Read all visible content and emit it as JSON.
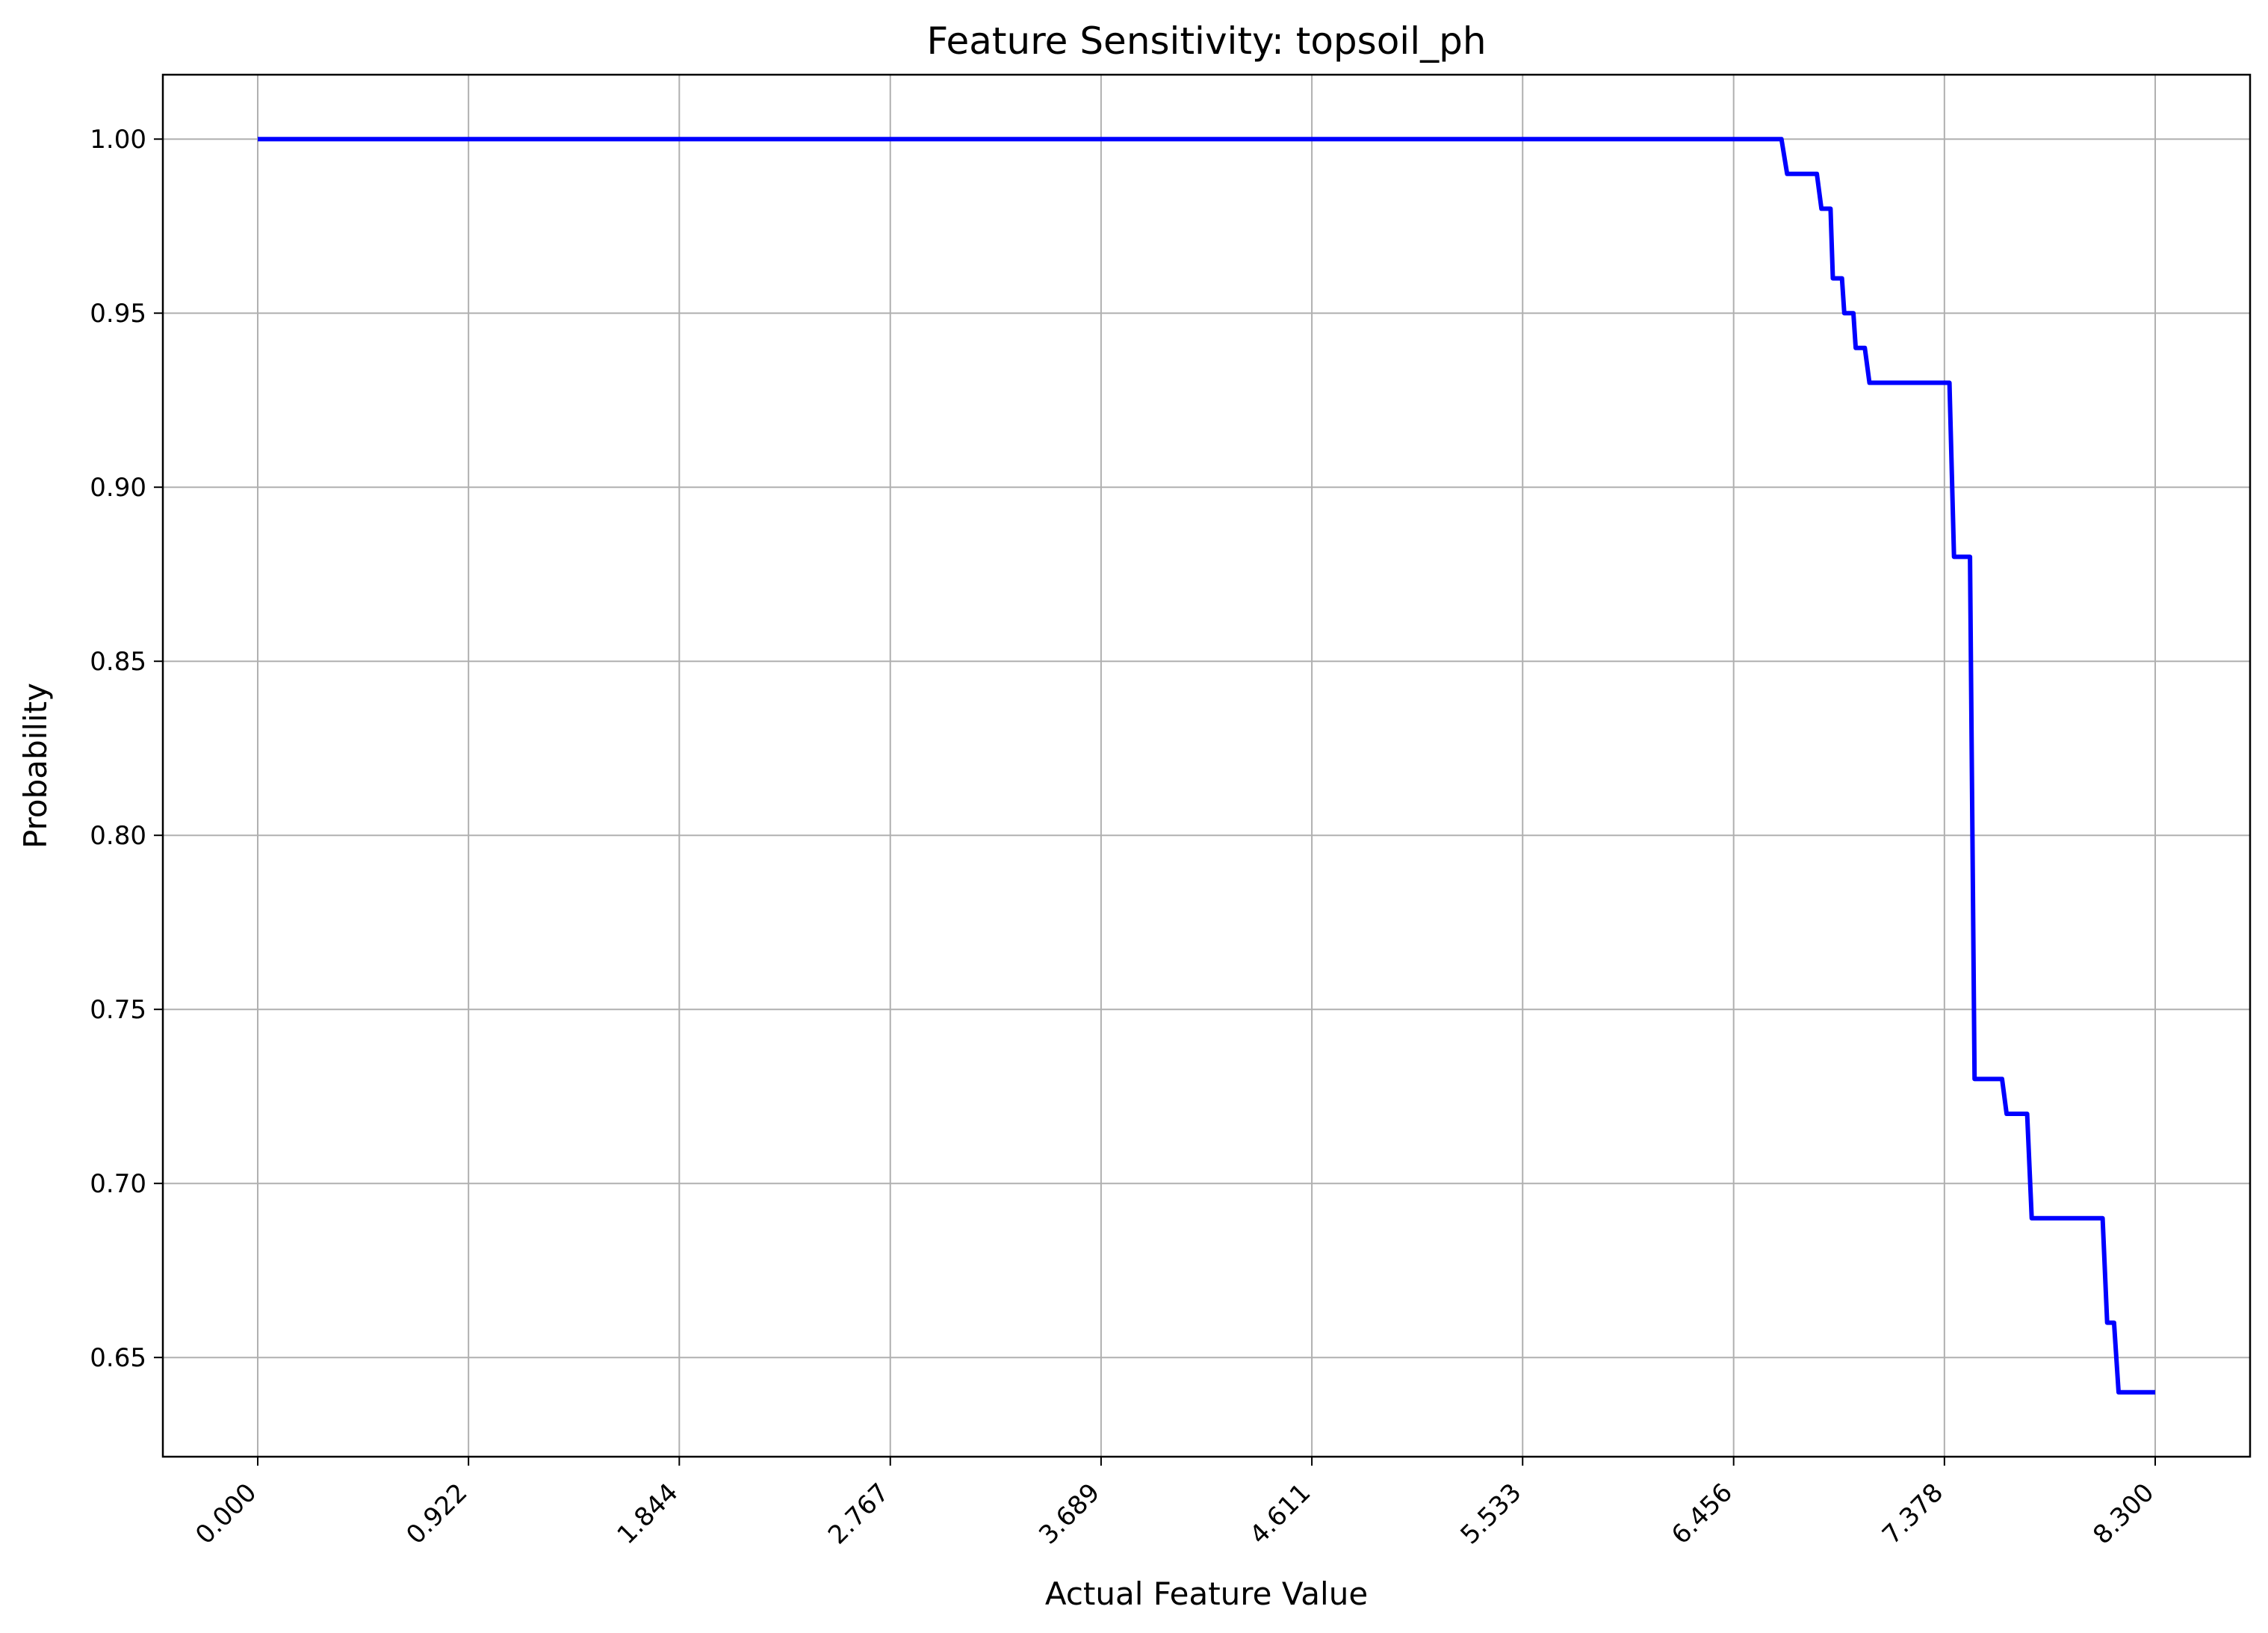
{
  "chart_data": {
    "type": "line",
    "title": "Feature Sensitivity: topsoil_ph",
    "xlabel": "Actual Feature Value",
    "ylabel": "Probability",
    "xlim": [
      -0.415,
      8.715
    ],
    "ylim": [
      0.6215,
      1.0185
    ],
    "x_ticks": [
      0.0,
      0.922,
      1.844,
      2.767,
      3.689,
      4.611,
      5.533,
      6.456,
      7.378,
      8.3
    ],
    "x_tick_labels": [
      "0.000",
      "0.922",
      "1.844",
      "2.767",
      "3.689",
      "4.611",
      "5.533",
      "6.456",
      "7.378",
      "8.300"
    ],
    "y_ticks": [
      0.65,
      0.7,
      0.75,
      0.8,
      0.85,
      0.9,
      0.95,
      1.0
    ],
    "y_tick_labels": [
      "0.65",
      "0.70",
      "0.75",
      "0.80",
      "0.85",
      "0.90",
      "0.95",
      "1.00"
    ],
    "grid": true,
    "line_color": "#0000ff",
    "series": [
      {
        "x": [
          0.0,
          6.665,
          6.69,
          6.82,
          6.84,
          6.88,
          6.89,
          6.93,
          6.94,
          6.98,
          6.99,
          7.03,
          7.05,
          7.4,
          7.42,
          7.49,
          7.51,
          7.63,
          7.65,
          7.74,
          7.76,
          8.07,
          8.09,
          8.12,
          8.14,
          8.3
        ],
        "y": [
          1.0,
          1.0,
          0.99,
          0.99,
          0.98,
          0.98,
          0.96,
          0.96,
          0.95,
          0.95,
          0.94,
          0.94,
          0.93,
          0.93,
          0.88,
          0.88,
          0.73,
          0.73,
          0.72,
          0.72,
          0.69,
          0.69,
          0.66,
          0.66,
          0.64,
          0.64
        ]
      }
    ]
  }
}
